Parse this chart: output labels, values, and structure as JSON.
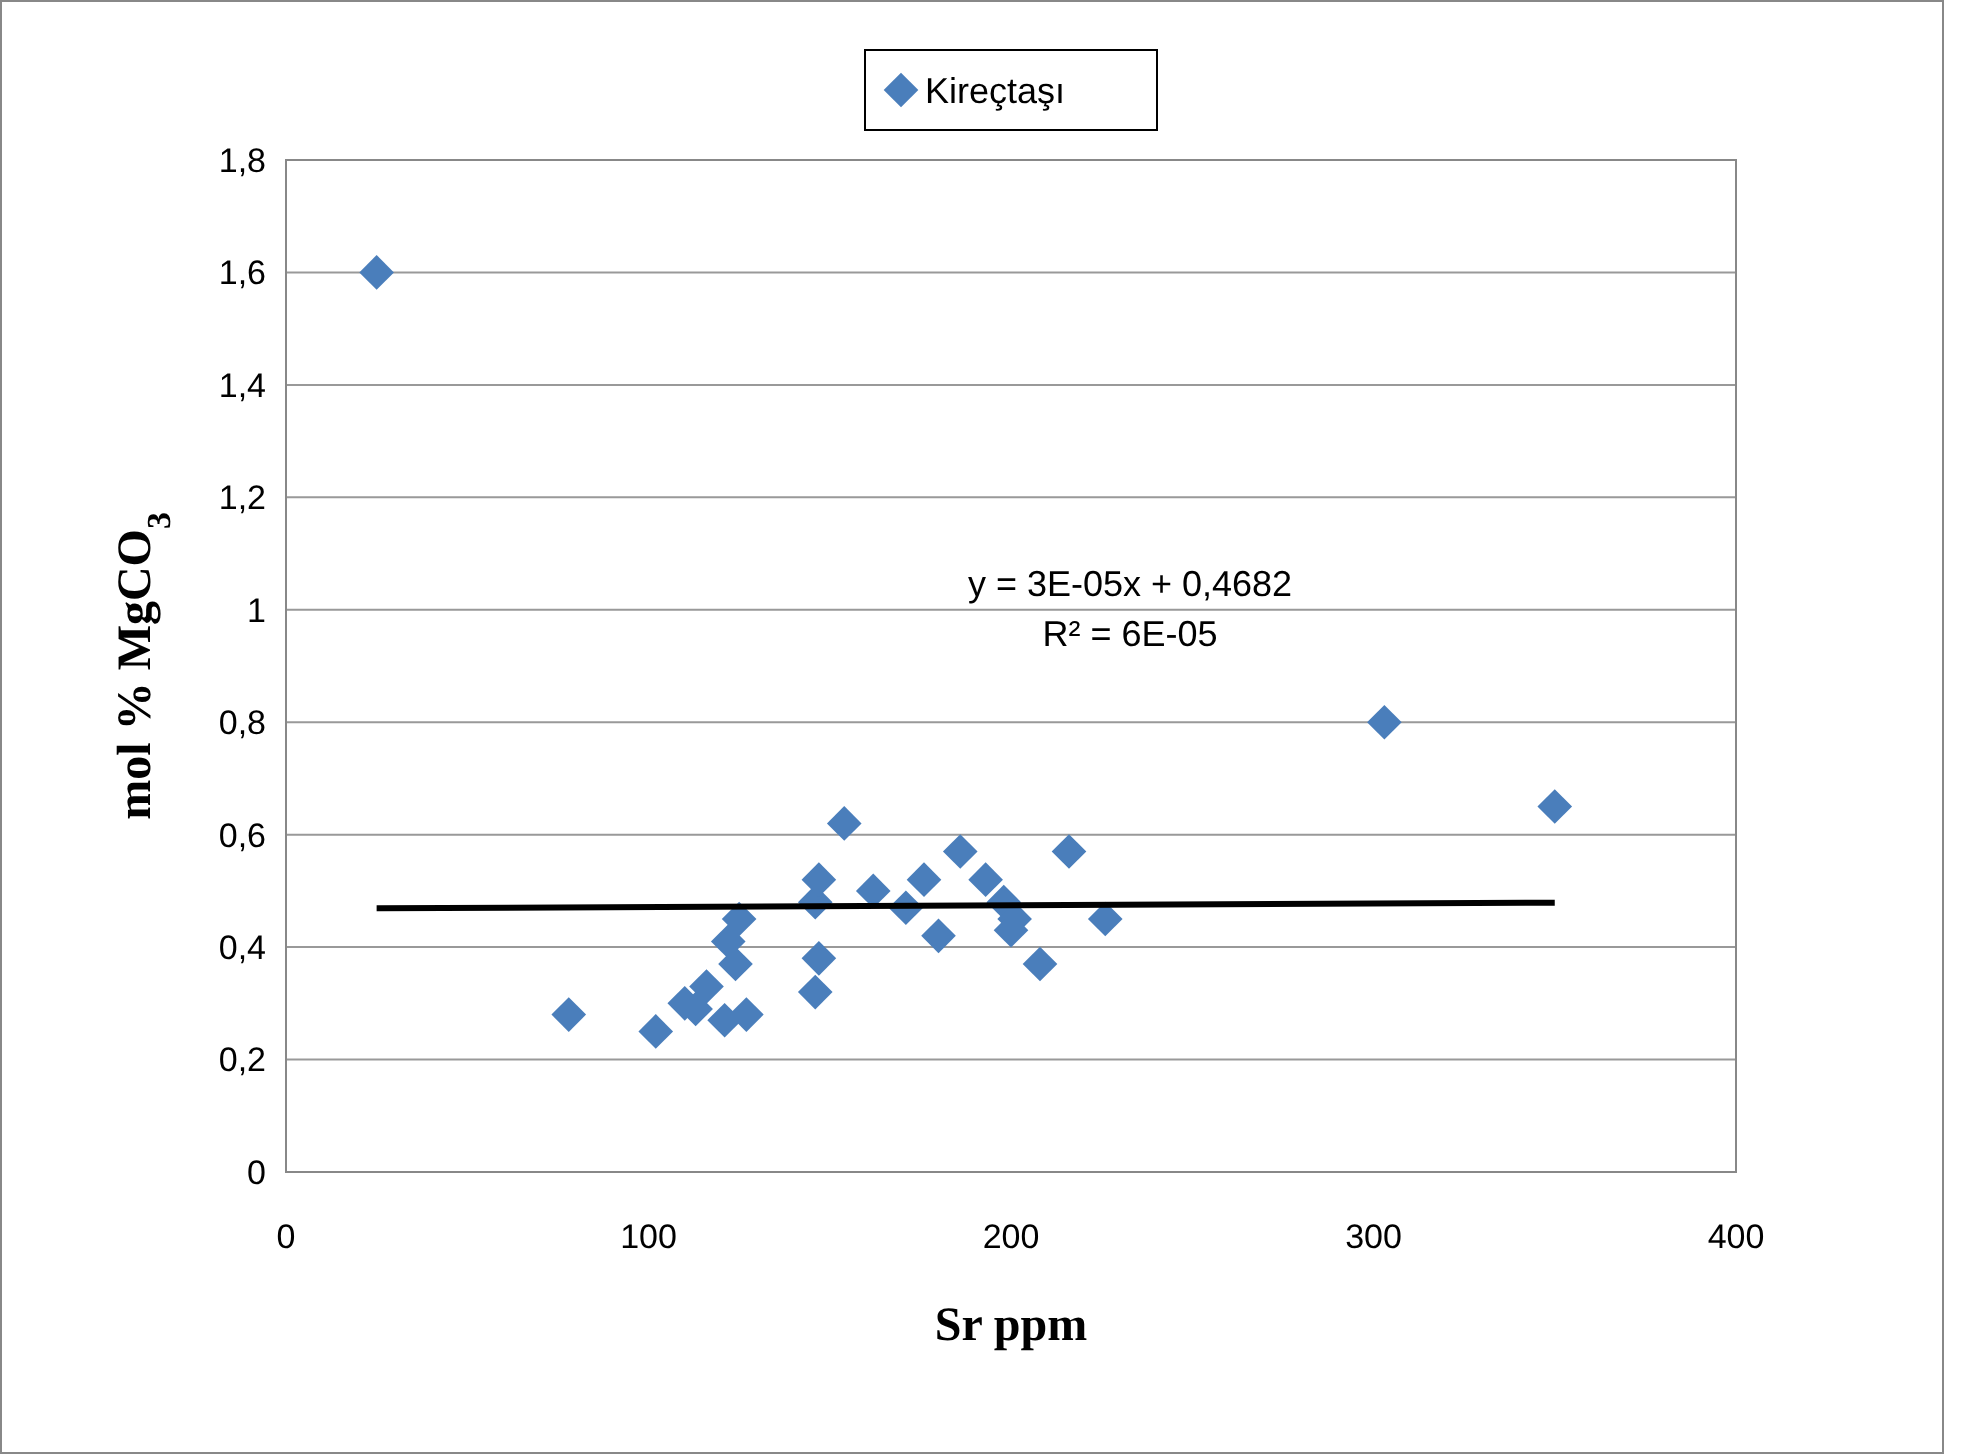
{
  "chart_data": {
    "type": "scatter",
    "xlabel": "Sr ppm",
    "ylabel": "mol % MgCO$_{3}$",
    "xlim": [
      0,
      400
    ],
    "ylim": [
      0,
      1.8
    ],
    "xticks": [
      0,
      100,
      200,
      300,
      400
    ],
    "yticks": [
      0,
      {
        "value": 0.2,
        "label": "0,2"
      },
      {
        "value": 0.4,
        "label": "0,4"
      },
      {
        "value": 0.6,
        "label": "0,6"
      },
      {
        "value": 0.8,
        "label": "0,8"
      },
      1,
      {
        "value": 1.2,
        "label": "1,2"
      },
      {
        "value": 1.4,
        "label": "1,4"
      },
      {
        "value": 1.6,
        "label": "1,6"
      },
      {
        "value": 1.8,
        "label": "1,8"
      }
    ],
    "grid": "y",
    "legend": "top",
    "marker": "diamond",
    "annotations": [
      "y = 3E-05x + 0,4682",
      "R² = 6E-05"
    ],
    "series": [
      {
        "name": "Kireçtaşı",
        "color": "#4a7ebb",
        "x": [
          25,
          78,
          102,
          110,
          116,
          113,
          121,
          127,
          122,
          124,
          125,
          146,
          147,
          146,
          147,
          154,
          162,
          171,
          180,
          176,
          186,
          193,
          198,
          201,
          200,
          208,
          216,
          226,
          303,
          350
        ],
        "values": [
          1.6,
          0.28,
          0.25,
          0.3,
          0.33,
          0.29,
          0.27,
          0.28,
          0.41,
          0.37,
          0.45,
          0.32,
          0.38,
          0.48,
          0.52,
          0.62,
          0.5,
          0.47,
          0.42,
          0.52,
          0.57,
          0.52,
          0.48,
          0.45,
          0.43,
          0.37,
          0.57,
          0.45,
          0.8,
          0.65
        ]
      },
      {
        "type": "line",
        "marker": "none",
        "color": "#000000",
        "x": [
          25,
          350
        ],
        "values": [
          0.469,
          0.479
        ]
      }
    ]
  }
}
